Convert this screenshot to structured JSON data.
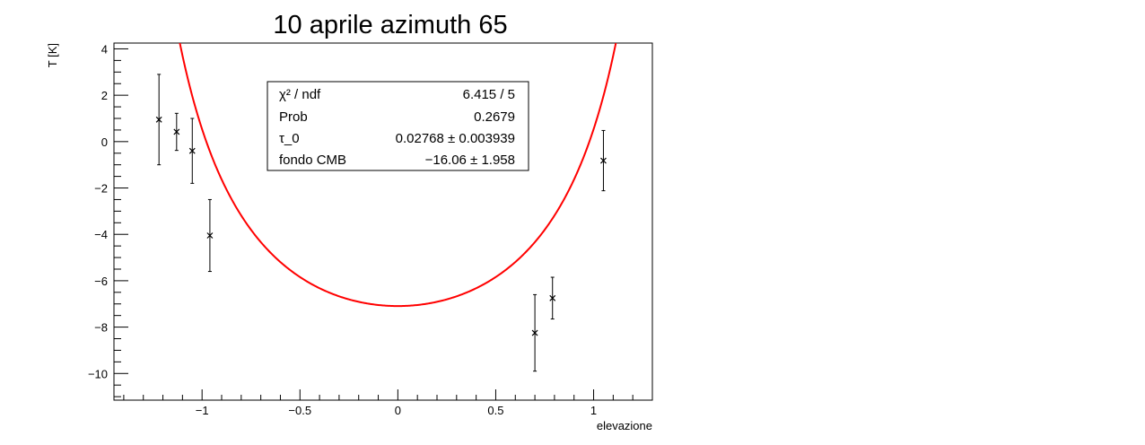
{
  "chart_data": {
    "type": "scatter",
    "title": "10 aprile azimuth 65",
    "xlabel": "elevazione",
    "ylabel": "T [K]",
    "xlim": [
      -1.45,
      1.3
    ],
    "ylim": [
      -11.15,
      4.25
    ],
    "x_ticks": [
      -1,
      -0.5,
      0,
      0.5,
      1
    ],
    "x_tick_labels": [
      "−1",
      "−0.5",
      "0",
      "0.5",
      "1"
    ],
    "y_ticks": [
      -10,
      -8,
      -6,
      -4,
      -2,
      0,
      2,
      4
    ],
    "y_tick_labels": [
      "−10",
      "−8",
      "−6",
      "−4",
      "−2",
      "0",
      "2",
      "4"
    ],
    "grid": false,
    "marker_color": "#000000",
    "fit_color": "#ff0000",
    "points": [
      {
        "x": -1.22,
        "y": 0.95,
        "err": 1.95
      },
      {
        "x": -1.13,
        "y": 0.42,
        "err": 0.8
      },
      {
        "x": -1.05,
        "y": -0.4,
        "err": 1.4
      },
      {
        "x": -0.96,
        "y": -4.05,
        "err": 1.55
      },
      {
        "x": 0.7,
        "y": -8.25,
        "err": 1.65
      },
      {
        "x": 0.79,
        "y": -6.75,
        "err": 0.9
      },
      {
        "x": 1.05,
        "y": -0.82,
        "err": 1.3
      }
    ],
    "fit": {
      "function": "T_CMB + tau_0 * 324 / cos(elevazione)",
      "fondo_CMB": -16.06,
      "tau_0": 0.02768
    },
    "stats_box": [
      {
        "label": "χ² / ndf",
        "value": "6.415 / 5"
      },
      {
        "label": "Prob",
        "value": "0.2679"
      },
      {
        "label": "τ_0",
        "value": "0.02768 ± 0.003939"
      },
      {
        "label": "fondo CMB",
        "value": "−16.06 ± 1.958"
      }
    ]
  }
}
